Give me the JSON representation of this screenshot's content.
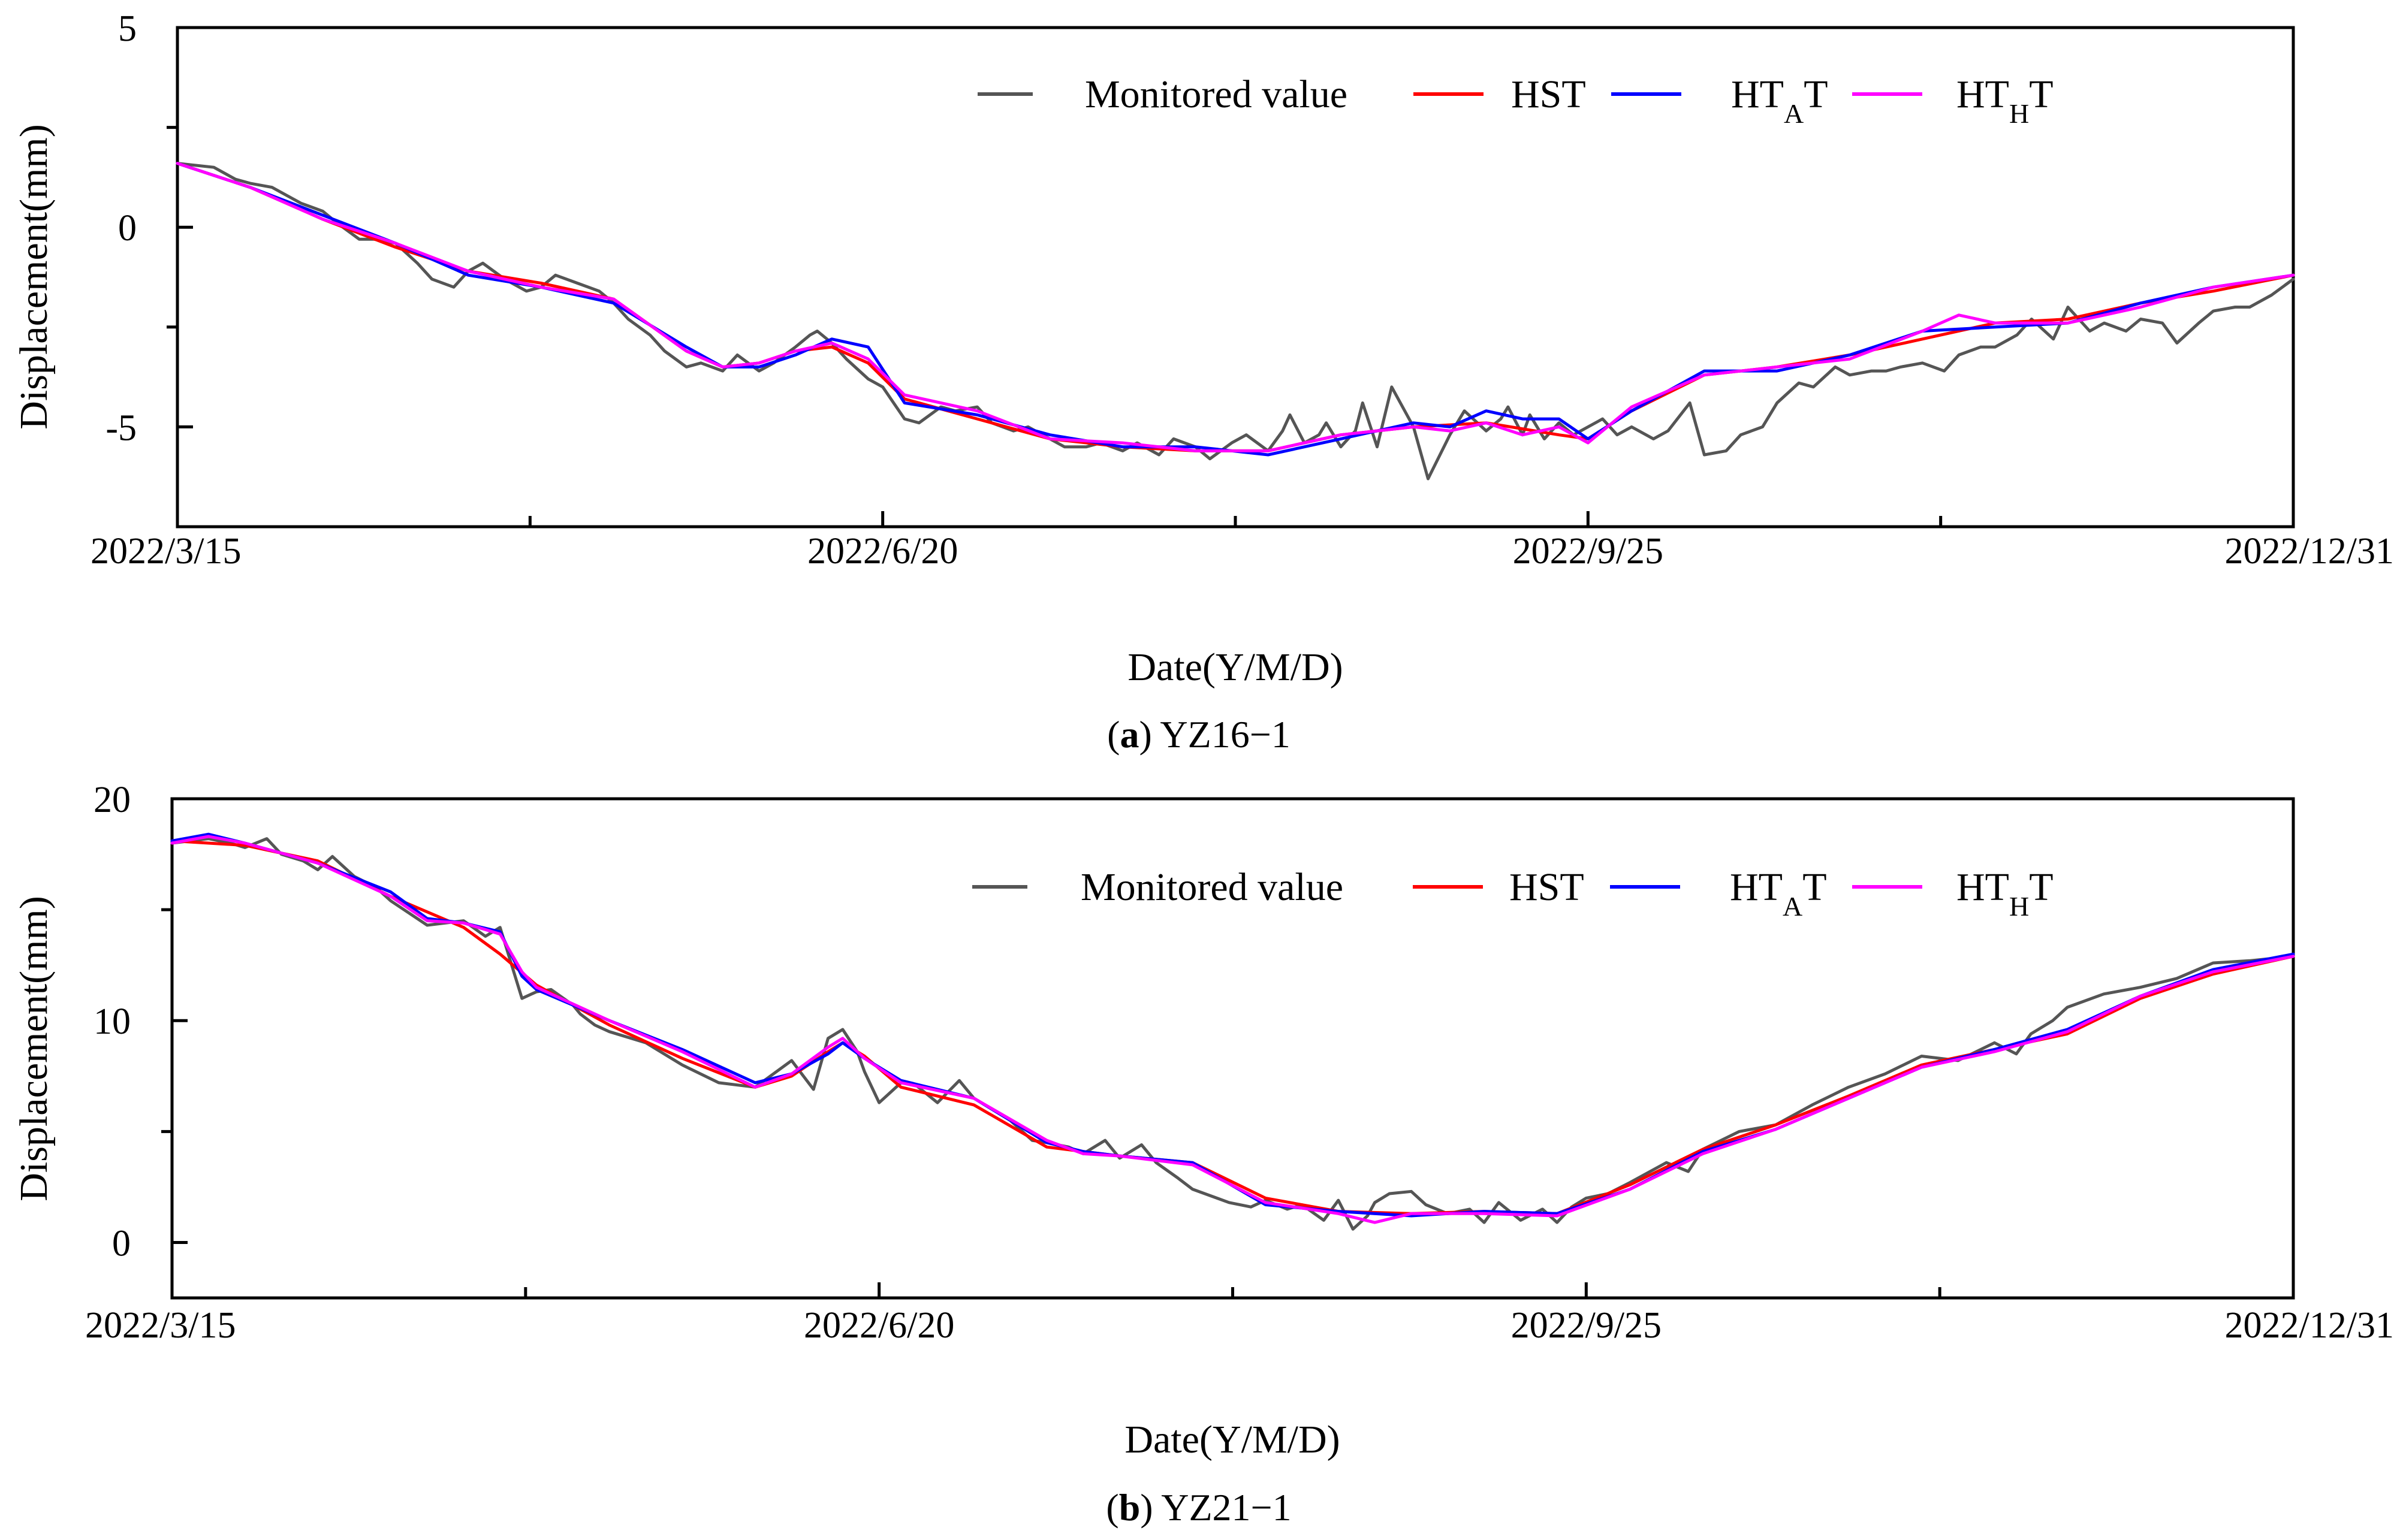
{
  "chart_data": [
    {
      "type": "line",
      "panel": "a",
      "caption_letter": "a",
      "caption_text": " YZ16−1",
      "xlabel": "Date(Y/M/D)",
      "ylabel": "Displacement(mm)",
      "ylim": [
        -7.5,
        5
      ],
      "xlim": [
        0,
        291
      ],
      "yticks": [
        5,
        0,
        -5
      ],
      "ytick_labels": [
        "5",
        "0",
        "-5"
      ],
      "yminor_ticks": [
        2.5,
        -2.5
      ],
      "xticks": [
        0,
        97,
        194,
        291
      ],
      "xtick_labels": [
        "2022/3/15",
        "2022/6/20",
        "2022/9/25",
        "2022/12/31"
      ],
      "xminor_ticks": [
        48.5,
        145.5,
        242.5
      ],
      "x_unit": "days since 2022/3/15",
      "legend": [
        "Monitored value",
        "HST",
        "HTAT",
        "HTHT"
      ],
      "series": [
        {
          "name": "Monitored value",
          "color": "#555555",
          "x": [
            0,
            5,
            8,
            10,
            13,
            15,
            17,
            20,
            22,
            25,
            27,
            30,
            33,
            35,
            38,
            40,
            42,
            45,
            48,
            50,
            52,
            55,
            58,
            60,
            62,
            65,
            67,
            70,
            72,
            75,
            77,
            80,
            82,
            85,
            87,
            88,
            90,
            92,
            95,
            97,
            100,
            102,
            105,
            107,
            110,
            112,
            115,
            117,
            120,
            122,
            125,
            127,
            130,
            132,
            135,
            137,
            140,
            142,
            145,
            147,
            150,
            152,
            153,
            155,
            157,
            158,
            160,
            162,
            163,
            165,
            167,
            170,
            172,
            175,
            177,
            180,
            182,
            183,
            185,
            186,
            188,
            190,
            192,
            194,
            196,
            198,
            200,
            203,
            205,
            208,
            210,
            213,
            215,
            218,
            220,
            223,
            225,
            228,
            230,
            233,
            235,
            237,
            240,
            243,
            245,
            248,
            250,
            253,
            255,
            258,
            260,
            263,
            265,
            268,
            270,
            273,
            275,
            278,
            280,
            283,
            285,
            288,
            291
          ],
          "y": [
            1.6,
            1.5,
            1.2,
            1.1,
            1.0,
            0.8,
            0.6,
            0.4,
            0.1,
            -0.3,
            -0.3,
            -0.4,
            -0.9,
            -1.3,
            -1.5,
            -1.1,
            -0.9,
            -1.3,
            -1.6,
            -1.5,
            -1.2,
            -1.4,
            -1.6,
            -1.9,
            -2.3,
            -2.7,
            -3.1,
            -3.5,
            -3.4,
            -3.6,
            -3.2,
            -3.6,
            -3.4,
            -3.0,
            -2.7,
            -2.6,
            -2.9,
            -3.3,
            -3.8,
            -4.0,
            -4.8,
            -4.9,
            -4.5,
            -4.6,
            -4.5,
            -4.9,
            -5.1,
            -5.0,
            -5.3,
            -5.5,
            -5.5,
            -5.4,
            -5.6,
            -5.4,
            -5.7,
            -5.3,
            -5.5,
            -5.8,
            -5.4,
            -5.2,
            -5.6,
            -5.1,
            -4.7,
            -5.4,
            -5.2,
            -4.9,
            -5.5,
            -5.1,
            -4.4,
            -5.5,
            -4.0,
            -5.0,
            -6.3,
            -5.2,
            -4.6,
            -5.1,
            -4.8,
            -4.5,
            -5.2,
            -4.7,
            -5.3,
            -4.9,
            -5.2,
            -5.0,
            -4.8,
            -5.2,
            -5.0,
            -5.3,
            -5.1,
            -4.4,
            -5.7,
            -5.6,
            -5.2,
            -5.0,
            -4.4,
            -3.9,
            -4.0,
            -3.5,
            -3.7,
            -3.6,
            -3.6,
            -3.5,
            -3.4,
            -3.6,
            -3.2,
            -3.0,
            -3.0,
            -2.7,
            -2.3,
            -2.8,
            -2.0,
            -2.6,
            -2.4,
            -2.6,
            -2.3,
            -2.4,
            -2.9,
            -2.4,
            -2.1,
            -2.0,
            -2.0,
            -1.7,
            -1.3
          ]
        },
        {
          "name": "HST",
          "color": "#ff0000",
          "x": [
            0,
            10,
            20,
            30,
            40,
            50,
            60,
            70,
            75,
            80,
            85,
            90,
            95,
            100,
            110,
            120,
            130,
            140,
            150,
            160,
            170,
            180,
            190,
            194,
            200,
            210,
            220,
            230,
            240,
            250,
            260,
            270,
            280,
            291
          ],
          "y": [
            1.6,
            1.0,
            0.2,
            -0.5,
            -1.1,
            -1.4,
            -1.8,
            -3.1,
            -3.5,
            -3.4,
            -3.1,
            -3.0,
            -3.4,
            -4.3,
            -4.8,
            -5.3,
            -5.5,
            -5.6,
            -5.6,
            -5.2,
            -5.0,
            -4.9,
            -5.2,
            -5.3,
            -4.6,
            -3.7,
            -3.5,
            -3.2,
            -2.8,
            -2.4,
            -2.3,
            -1.9,
            -1.6,
            -1.2
          ]
        },
        {
          "name": "HTAT",
          "color": "#0000ff",
          "x": [
            0,
            10,
            20,
            30,
            40,
            50,
            60,
            70,
            75,
            80,
            85,
            90,
            95,
            100,
            110,
            120,
            130,
            140,
            150,
            160,
            170,
            175,
            180,
            185,
            190,
            194,
            200,
            210,
            220,
            230,
            240,
            250,
            260,
            270,
            280,
            291
          ],
          "y": [
            1.6,
            1.0,
            0.3,
            -0.4,
            -1.2,
            -1.5,
            -1.9,
            -3.0,
            -3.5,
            -3.5,
            -3.2,
            -2.8,
            -3.0,
            -4.4,
            -4.7,
            -5.2,
            -5.5,
            -5.5,
            -5.7,
            -5.3,
            -4.9,
            -5.0,
            -4.6,
            -4.8,
            -4.8,
            -5.3,
            -4.6,
            -3.6,
            -3.6,
            -3.2,
            -2.6,
            -2.5,
            -2.4,
            -1.9,
            -1.5,
            -1.2
          ]
        },
        {
          "name": "HTHT",
          "color": "#ff00ff",
          "x": [
            0,
            10,
            20,
            30,
            40,
            50,
            60,
            70,
            75,
            80,
            85,
            90,
            95,
            100,
            110,
            120,
            130,
            140,
            150,
            160,
            170,
            175,
            180,
            185,
            190,
            194,
            200,
            210,
            220,
            230,
            240,
            245,
            250,
            260,
            270,
            280,
            291
          ],
          "y": [
            1.6,
            1.0,
            0.2,
            -0.4,
            -1.1,
            -1.5,
            -1.8,
            -3.1,
            -3.5,
            -3.4,
            -3.1,
            -2.9,
            -3.3,
            -4.2,
            -4.6,
            -5.3,
            -5.4,
            -5.6,
            -5.6,
            -5.2,
            -5.0,
            -5.1,
            -4.9,
            -5.2,
            -5.0,
            -5.4,
            -4.5,
            -3.7,
            -3.5,
            -3.3,
            -2.6,
            -2.2,
            -2.4,
            -2.4,
            -2.0,
            -1.5,
            -1.2
          ]
        }
      ]
    },
    {
      "type": "line",
      "panel": "b",
      "caption_letter": "b",
      "caption_text": " YZ21−1",
      "xlabel": "Date(Y/M/D)",
      "ylabel": "Displacement(mm)",
      "ylim": [
        -2.5,
        20
      ],
      "xlim": [
        0,
        291
      ],
      "yticks": [
        20,
        10,
        0
      ],
      "ytick_labels": [
        "20",
        "10",
        "0"
      ],
      "yminor_ticks": [
        15,
        5
      ],
      "xticks": [
        0,
        97,
        194,
        291
      ],
      "xtick_labels": [
        "2022/3/15",
        "2022/6/20",
        "2022/9/25",
        "2022/12/31"
      ],
      "xminor_ticks": [
        48.5,
        145.5,
        242.5
      ],
      "x_unit": "days since 2022/3/15",
      "legend": [
        "Monitored value",
        "HST",
        "HTAT",
        "HTHT"
      ],
      "series": [
        {
          "name": "Monitored value",
          "color": "#555555",
          "x": [
            0,
            5,
            8,
            10,
            13,
            15,
            18,
            20,
            22,
            25,
            28,
            30,
            35,
            40,
            43,
            45,
            48,
            50,
            52,
            55,
            56,
            58,
            60,
            65,
            70,
            75,
            80,
            85,
            88,
            90,
            92,
            94,
            95,
            97,
            100,
            102,
            105,
            108,
            110,
            115,
            118,
            120,
            123,
            125,
            128,
            130,
            133,
            135,
            138,
            140,
            145,
            148,
            150,
            153,
            155,
            158,
            160,
            162,
            164,
            165,
            167,
            170,
            172,
            175,
            178,
            180,
            182,
            185,
            188,
            190,
            192,
            194,
            197,
            200,
            205,
            208,
            210,
            215,
            220,
            225,
            230,
            235,
            240,
            245,
            250,
            253,
            255,
            258,
            260,
            265,
            270,
            275,
            280,
            285,
            291
          ],
          "y": [
            18.0,
            18.2,
            18.0,
            17.8,
            18.2,
            17.5,
            17.2,
            16.8,
            17.4,
            16.5,
            16.0,
            15.4,
            14.3,
            14.5,
            13.8,
            14.2,
            11.0,
            11.3,
            11.4,
            10.7,
            10.3,
            9.8,
            9.5,
            9.0,
            8.0,
            7.2,
            7.0,
            8.2,
            6.9,
            9.2,
            9.6,
            8.6,
            7.7,
            6.3,
            7.2,
            7.1,
            6.3,
            7.3,
            6.5,
            5.5,
            4.6,
            4.5,
            4.3,
            4.0,
            4.6,
            3.8,
            4.4,
            3.6,
            2.9,
            2.4,
            1.8,
            1.6,
            1.9,
            1.5,
            1.7,
            1.0,
            1.9,
            0.6,
            1.2,
            1.8,
            2.2,
            2.3,
            1.7,
            1.3,
            1.5,
            0.9,
            1.8,
            1.0,
            1.5,
            0.9,
            1.6,
            2.0,
            2.2,
            2.7,
            3.6,
            3.2,
            4.2,
            5.0,
            5.3,
            6.2,
            7.0,
            7.6,
            8.4,
            8.2,
            9.0,
            8.5,
            9.4,
            10.0,
            10.6,
            11.2,
            11.5,
            11.9,
            12.6,
            12.7,
            12.9
          ]
        },
        {
          "name": "HST",
          "color": "#ff0000",
          "x": [
            0,
            10,
            20,
            30,
            40,
            45,
            50,
            60,
            70,
            80,
            85,
            90,
            92,
            95,
            100,
            110,
            120,
            130,
            140,
            150,
            160,
            170,
            180,
            190,
            200,
            210,
            220,
            230,
            240,
            250,
            260,
            270,
            280,
            291
          ],
          "y": [
            18.1,
            17.9,
            17.2,
            15.6,
            14.2,
            13.0,
            11.6,
            9.8,
            8.3,
            7.0,
            7.5,
            8.6,
            9.0,
            8.4,
            7.0,
            6.2,
            4.3,
            3.9,
            3.6,
            2.0,
            1.4,
            1.3,
            1.4,
            1.3,
            2.6,
            4.2,
            5.3,
            6.6,
            8.0,
            8.7,
            9.4,
            11.0,
            12.1,
            12.9
          ]
        },
        {
          "name": "HTAT",
          "color": "#0000ff",
          "x": [
            0,
            5,
            10,
            20,
            30,
            35,
            40,
            45,
            48,
            50,
            60,
            70,
            80,
            85,
            90,
            92,
            95,
            100,
            110,
            120,
            125,
            130,
            140,
            150,
            160,
            170,
            180,
            190,
            200,
            210,
            220,
            230,
            240,
            250,
            260,
            270,
            280,
            291
          ],
          "y": [
            18.1,
            18.4,
            18.0,
            17.1,
            15.8,
            14.6,
            14.4,
            14.0,
            12.0,
            11.4,
            10.0,
            8.7,
            7.2,
            7.6,
            8.5,
            9.0,
            8.3,
            7.3,
            6.5,
            4.5,
            4.1,
            3.9,
            3.6,
            1.7,
            1.4,
            1.2,
            1.4,
            1.3,
            2.4,
            4.1,
            5.1,
            6.5,
            7.9,
            8.7,
            9.6,
            11.1,
            12.3,
            13.0
          ]
        },
        {
          "name": "HTHT",
          "color": "#ff00ff",
          "x": [
            0,
            5,
            10,
            20,
            30,
            35,
            40,
            45,
            48,
            50,
            60,
            70,
            80,
            85,
            90,
            92,
            95,
            100,
            110,
            120,
            125,
            130,
            140,
            150,
            160,
            165,
            170,
            180,
            190,
            200,
            210,
            220,
            230,
            240,
            250,
            260,
            270,
            280,
            291
          ],
          "y": [
            18.0,
            18.3,
            18.0,
            17.1,
            15.6,
            14.5,
            14.4,
            13.9,
            12.2,
            11.5,
            10.0,
            8.6,
            7.0,
            7.6,
            8.8,
            9.2,
            8.3,
            7.2,
            6.5,
            4.6,
            4.0,
            3.9,
            3.5,
            1.8,
            1.3,
            0.9,
            1.3,
            1.3,
            1.2,
            2.4,
            4.0,
            5.1,
            6.5,
            7.9,
            8.6,
            9.5,
            11.1,
            12.2,
            12.9
          ]
        }
      ]
    }
  ]
}
